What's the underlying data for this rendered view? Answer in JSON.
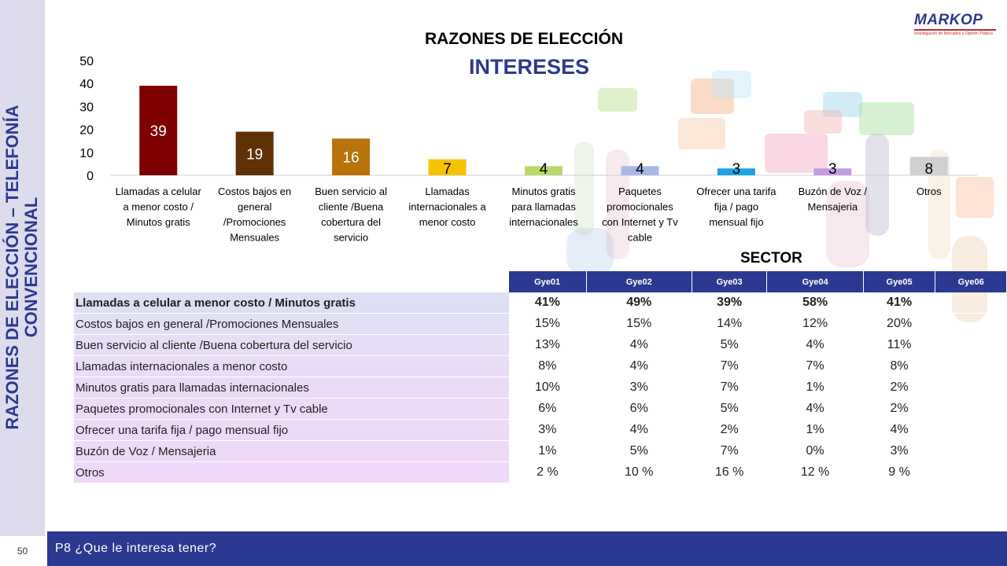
{
  "sidebar": {
    "title_line1": "RAZONES DE ELECCIÓN – TELEFONÍA",
    "title_line2": "CONVENCIONAL",
    "page_number": "50"
  },
  "logo": {
    "brand": "MARKOP",
    "tagline": "Investigación de Mercados y Opinión Pública"
  },
  "footer": {
    "question": "P8 ¿Que le interesa tener?"
  },
  "chart_data": {
    "type": "bar",
    "title": "RAZONES DE ELECCIÓN",
    "subtitle": "INTERESES",
    "categories": [
      "Llamadas a celular a menor costo / Minutos gratis",
      "Costos bajos en general /Promociones Mensuales",
      "Buen servicio al cliente /Buena cobertura del servicio",
      "Llamadas internacionales a menor costo",
      "Minutos gratis para llamadas internacionales",
      "Paquetes promocionales con Internet y Tv cable",
      "Ofrecer una tarifa fija / pago mensual fijo",
      "Buzón de Voz / Mensajeria",
      "Otros"
    ],
    "category_lines": [
      [
        "Llamadas a celular",
        "a menor costo /",
        "Minutos gratis"
      ],
      [
        "Costos bajos en",
        "general",
        "/Promociones",
        "Mensuales"
      ],
      [
        "Buen servicio al",
        "cliente /Buena",
        "cobertura del",
        "servicio"
      ],
      [
        "Llamadas",
        "internacionales a",
        "menor costo"
      ],
      [
        "Minutos gratis",
        "para llamadas",
        "internacionales"
      ],
      [
        "Paquetes",
        "promocionales",
        "con Internet y Tv",
        "cable"
      ],
      [
        "Ofrecer una tarifa",
        "fija / pago",
        "mensual fijo"
      ],
      [
        "Buzón de Voz /",
        "Mensajeria"
      ],
      [
        "Otros"
      ]
    ],
    "values": [
      39,
      19,
      16,
      7,
      4,
      4,
      3,
      3,
      8
    ],
    "colors": [
      "#7f0000",
      "#5e3206",
      "#b8730b",
      "#f5c400",
      "#b8d96a",
      "#a9b8e6",
      "#1aa3e0",
      "#c29ce0",
      "#d0d0d0"
    ],
    "label_colors": [
      "#ffffff",
      "#ffffff",
      "#ffffff",
      "#000000",
      "#000000",
      "#000000",
      "#000000",
      "#000000",
      "#000000"
    ],
    "yticks": [
      0,
      10,
      20,
      30,
      40,
      50
    ],
    "ylim": [
      0,
      50
    ],
    "xlabel": "",
    "ylabel": "",
    "grid": false
  },
  "table": {
    "title": "SECTOR",
    "headers": [
      "Gye01",
      "Gye02",
      "Gye03",
      "Gye04",
      "Gye05",
      "Gye06"
    ],
    "rows": [
      {
        "label": "Llamadas a celular a menor costo / Minutos gratis",
        "values": [
          "41%",
          "49%",
          "39%",
          "58%",
          "41%",
          ""
        ]
      },
      {
        "label": "Costos bajos en general /Promociones Mensuales",
        "values": [
          "15%",
          "15%",
          "14%",
          "12%",
          "20%",
          ""
        ]
      },
      {
        "label": "Buen servicio al cliente /Buena cobertura del servicio",
        "values": [
          "13%",
          "4%",
          "5%",
          "4%",
          "11%",
          ""
        ]
      },
      {
        "label": "Llamadas internacionales a menor costo",
        "values": [
          "8%",
          "4%",
          "7%",
          "7%",
          "8%",
          ""
        ]
      },
      {
        "label": "Minutos gratis para llamadas internacionales",
        "values": [
          "10%",
          "3%",
          "7%",
          "1%",
          "2%",
          ""
        ]
      },
      {
        "label": "Paquetes promocionales con Internet y Tv cable",
        "values": [
          "6%",
          "6%",
          "5%",
          "4%",
          "2%",
          ""
        ]
      },
      {
        "label": "Ofrecer una tarifa fija / pago mensual fijo",
        "values": [
          "3%",
          "4%",
          "2%",
          "1%",
          "4%",
          ""
        ]
      },
      {
        "label": "Buzón de Voz / Mensajeria",
        "values": [
          "1%",
          "5%",
          "7%",
          "0%",
          "3%",
          ""
        ]
      },
      {
        "label": "Otros",
        "values": [
          "2 %",
          "10 %",
          "16 %",
          "12 %",
          "9 %",
          ""
        ]
      }
    ],
    "row_colors": [
      "#dde0f4",
      "#e2e0f5",
      "#e6def6",
      "#e9dcf6",
      "#ebdbf6",
      "#ecdaf7",
      "#eddaf7",
      "#eedaf7",
      "#efd9f8"
    ]
  },
  "colors": {
    "accent": "#2b3990",
    "logo_red": "#c1272d",
    "sidebar": "#dcdcec"
  }
}
